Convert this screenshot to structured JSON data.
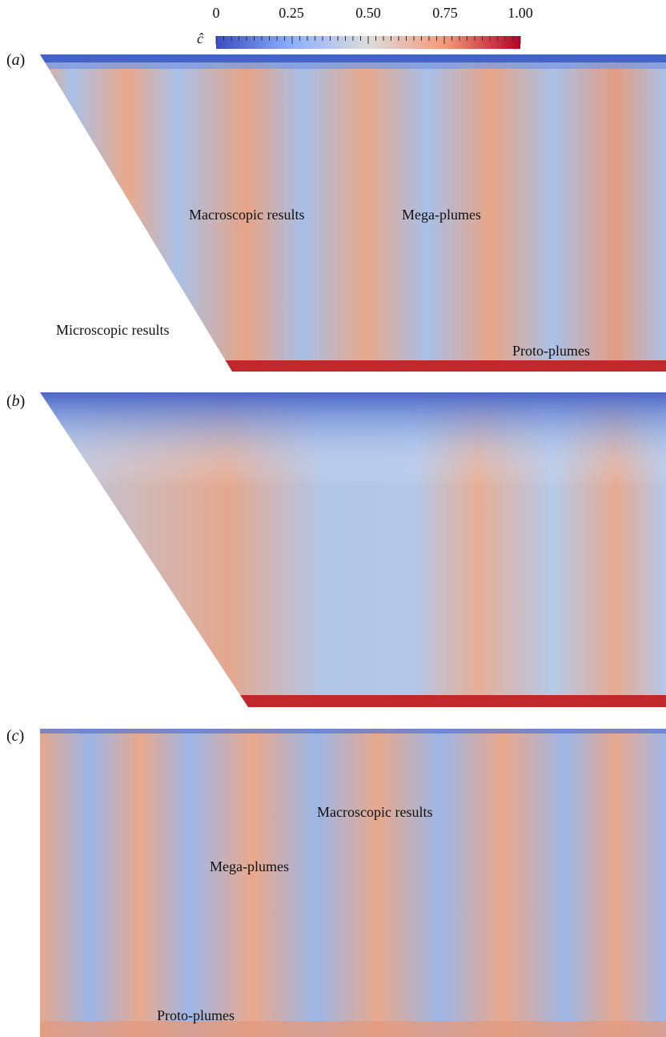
{
  "colorbar": {
    "symbol": "ĉ",
    "tick_labels": [
      "0",
      "0.25",
      "0.50",
      "0.75",
      "1.00"
    ],
    "colors": [
      "#3b4cc0",
      "#8db0fe",
      "#dddcdc",
      "#f49a7b",
      "#b40426"
    ]
  },
  "panels": [
    {
      "letter_open": "(",
      "letter": "a",
      "letter_close": ")",
      "labels": [
        "Macroscopic results",
        "Mega-plumes",
        "Microscopic results",
        "Proto-plumes"
      ]
    },
    {
      "letter_open": "(",
      "letter": "b",
      "letter_close": ")",
      "labels": []
    },
    {
      "letter_open": "(",
      "letter": "c",
      "letter_close": ")",
      "labels": [
        "Macroscopic results",
        "Mega-plumes",
        "Proto-plumes"
      ]
    }
  ]
}
